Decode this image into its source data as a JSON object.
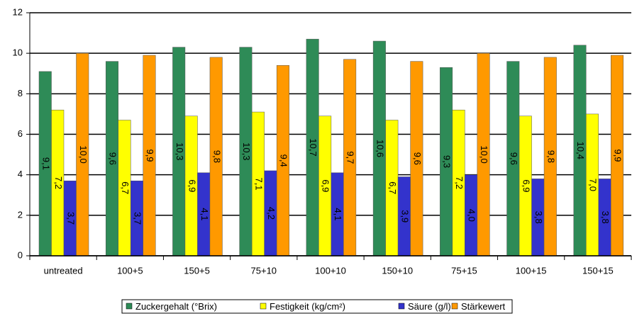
{
  "chart_data": {
    "type": "bar",
    "categories": [
      "untreated",
      "100+5",
      "150+5",
      "75+10",
      "100+10",
      "150+10",
      "75+15",
      "100+15",
      "150+15"
    ],
    "series": [
      {
        "name": "Zuckergehalt (°Brix)",
        "color": "#2e8b57",
        "values": [
          9.1,
          9.6,
          10.3,
          10.3,
          10.7,
          10.6,
          9.3,
          9.6,
          10.4
        ],
        "value_labels": [
          "9,1",
          "9,6",
          "10,3",
          "10,3",
          "10,7",
          "10,6",
          "9,3",
          "9,6",
          "10,4"
        ]
      },
      {
        "name": "Festigkeit (kg/cm²)",
        "color": "#ffff00",
        "values": [
          7.2,
          6.7,
          6.9,
          7.1,
          6.9,
          6.7,
          7.2,
          6.9,
          7.0
        ],
        "value_labels": [
          "7,2",
          "6,7",
          "6,9",
          "7,1",
          "6,9",
          "6,7",
          "7,2",
          "6,9",
          "7,0"
        ]
      },
      {
        "name": "Säure (g/l)",
        "color": "#3333cc",
        "values": [
          3.7,
          3.7,
          4.1,
          4.2,
          4.1,
          3.9,
          4.0,
          3.8,
          3.8
        ],
        "value_labels": [
          "3,7",
          "3,7",
          "4,1",
          "4,2",
          "4,1",
          "3,9",
          "4,0",
          "3,8",
          "3,8"
        ]
      },
      {
        "name": "Stärkewert",
        "color": "#ff9900",
        "values": [
          10.0,
          9.9,
          9.8,
          9.4,
          9.7,
          9.6,
          10.0,
          9.8,
          9.9
        ],
        "value_labels": [
          "10,0",
          "9,9",
          "9,8",
          "9,4",
          "9,7",
          "9,6",
          "10,0",
          "9,8",
          "9,9"
        ]
      }
    ],
    "ylim": [
      0,
      12
    ],
    "yticks": [
      0,
      2,
      4,
      6,
      8,
      10,
      12
    ],
    "grid": true,
    "legend": "bottom"
  }
}
